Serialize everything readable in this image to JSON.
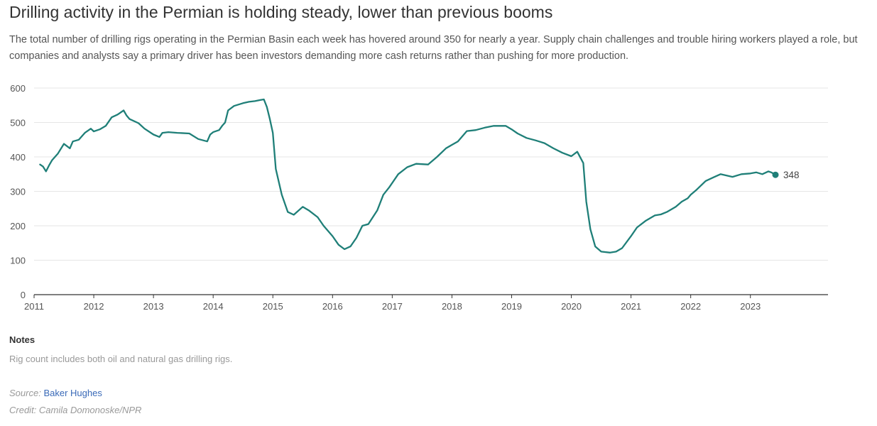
{
  "title": "Drilling activity in the Permian is holding steady, lower than previous booms",
  "subtitle": "The total number of drilling rigs operating in the Permian Basin each week has hovered around 350 for nearly a year. Supply chain challenges and trouble hiring workers played a role, but companies and analysts say a primary driver has been investors demanding more cash returns rather than pushing for more production.",
  "notes": {
    "heading": "Notes",
    "text": "Rig count includes both oil and natural gas drilling rigs."
  },
  "source": {
    "label": "Source:",
    "link_text": "Baker Hughes"
  },
  "credit": "Credit: Camila Domonoske/NPR",
  "chart_data": {
    "type": "line",
    "title": "",
    "xlabel": "",
    "ylabel": "",
    "xlim": [
      2011.0,
      2024.3
    ],
    "ylim": [
      0,
      600
    ],
    "grid": true,
    "line_color": "#1f7f78",
    "yticks": [
      0,
      100,
      200,
      300,
      400,
      500,
      600
    ],
    "xticks": [
      "2011",
      "2012",
      "2013",
      "2014",
      "2015",
      "2016",
      "2017",
      "2018",
      "2019",
      "2020",
      "2021",
      "2022",
      "2023"
    ],
    "end_label": "348",
    "series": [
      {
        "x": [
          2011.1,
          2011.15,
          2011.2,
          2011.25,
          2011.3,
          2011.4,
          2011.5,
          2011.6,
          2011.65,
          2011.75,
          2011.85,
          2011.95,
          2012.0,
          2012.1,
          2012.2,
          2012.3,
          2012.4,
          2012.5,
          2012.55,
          2012.6,
          2012.75,
          2012.85,
          2013.0,
          2013.1,
          2013.15,
          2013.25,
          2013.4,
          2013.6,
          2013.75,
          2013.9,
          2013.95,
          2014.0,
          2014.1,
          2014.15,
          2014.2,
          2014.25,
          2014.35,
          2014.5,
          2014.6,
          2014.7,
          2014.78,
          2014.85,
          2014.9,
          2014.95,
          2015.0,
          2015.05,
          2015.15,
          2015.25,
          2015.35,
          2015.5,
          2015.6,
          2015.75,
          2015.85,
          2016.0,
          2016.1,
          2016.2,
          2016.3,
          2016.4,
          2016.5,
          2016.6,
          2016.75,
          2016.85,
          2016.95,
          2017.1,
          2017.25,
          2017.4,
          2017.6,
          2017.75,
          2017.9,
          2018.0,
          2018.1,
          2018.25,
          2018.4,
          2018.55,
          2018.7,
          2018.9,
          2019.0,
          2019.1,
          2019.25,
          2019.4,
          2019.55,
          2019.7,
          2019.85,
          2020.0,
          2020.1,
          2020.2,
          2020.25,
          2020.32,
          2020.4,
          2020.5,
          2020.65,
          2020.75,
          2020.85,
          2021.0,
          2021.1,
          2021.25,
          2021.4,
          2021.5,
          2021.6,
          2021.75,
          2021.85,
          2021.95,
          2022.0,
          2022.1,
          2022.25,
          2022.4,
          2022.5,
          2022.7,
          2022.85,
          2023.0,
          2023.1,
          2023.2,
          2023.3,
          2023.35,
          2023.42
        ],
        "y": [
          378,
          372,
          358,
          375,
          390,
          410,
          438,
          425,
          445,
          450,
          470,
          482,
          474,
          480,
          490,
          515,
          523,
          535,
          520,
          510,
          498,
          482,
          465,
          458,
          470,
          472,
          470,
          468,
          452,
          445,
          465,
          472,
          478,
          490,
          500,
          535,
          548,
          556,
          560,
          562,
          565,
          567,
          545,
          510,
          470,
          365,
          290,
          240,
          232,
          255,
          245,
          225,
          200,
          170,
          145,
          132,
          140,
          165,
          200,
          205,
          245,
          290,
          312,
          350,
          370,
          380,
          378,
          400,
          425,
          435,
          445,
          475,
          478,
          485,
          490,
          490,
          480,
          468,
          455,
          448,
          440,
          425,
          412,
          402,
          415,
          382,
          270,
          190,
          140,
          125,
          122,
          125,
          135,
          170,
          195,
          215,
          230,
          233,
          240,
          255,
          270,
          280,
          290,
          305,
          330,
          342,
          350,
          342,
          350,
          352,
          355,
          350,
          358,
          355,
          348
        ]
      }
    ]
  }
}
